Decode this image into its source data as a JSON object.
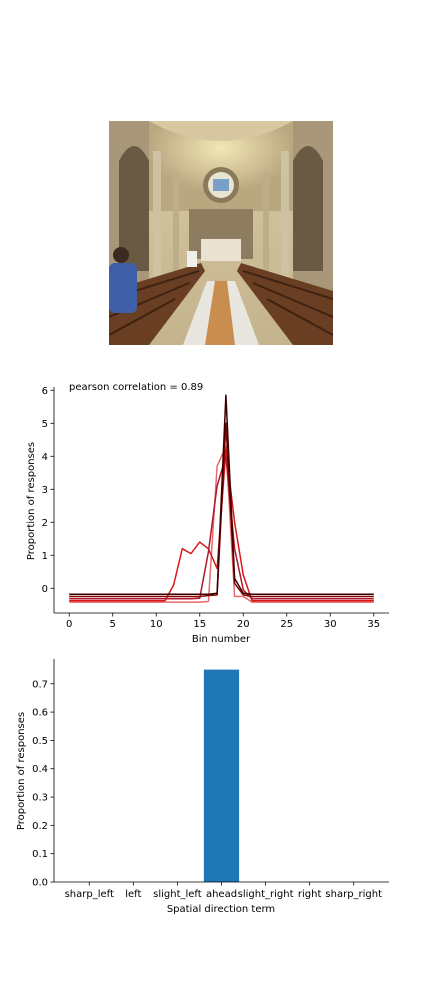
{
  "chart_data": [
    {
      "type": "line",
      "annotation": "pearson correlation = 0.89",
      "xlabel": "Bin number",
      "ylabel": "Proportion of responses",
      "xlim": [
        -1.75,
        36.75
      ],
      "ylim": [
        -0.75,
        6.1
      ],
      "xticks": [
        0,
        5,
        10,
        15,
        20,
        25,
        30,
        35
      ],
      "yticks": [
        0,
        1,
        2,
        3,
        4,
        5,
        6
      ],
      "grid": false,
      "x": [
        0,
        1,
        2,
        3,
        4,
        5,
        6,
        7,
        8,
        9,
        10,
        11,
        12,
        13,
        14,
        15,
        16,
        17,
        18,
        19,
        20,
        21,
        22,
        23,
        24,
        25,
        26,
        27,
        28,
        29,
        30,
        35
      ],
      "series": [
        {
          "color": "#e96a6a",
          "values": [
            -0.42,
            -0.42,
            -0.42,
            -0.42,
            -0.42,
            -0.42,
            -0.42,
            -0.42,
            -0.42,
            -0.42,
            -0.42,
            -0.42,
            -0.42,
            -0.42,
            -0.42,
            -0.42,
            -0.4,
            3.7,
            4.3,
            -0.25,
            -0.25,
            -0.42,
            -0.42,
            -0.42,
            -0.42,
            -0.42,
            -0.42,
            -0.42,
            -0.42,
            -0.42,
            -0.42,
            -0.42
          ]
        },
        {
          "color": "#d7191c",
          "values": [
            -0.38,
            -0.38,
            -0.38,
            -0.38,
            -0.38,
            -0.38,
            -0.38,
            -0.38,
            -0.38,
            -0.38,
            -0.38,
            -0.38,
            0.1,
            1.2,
            1.05,
            1.4,
            1.2,
            0.6,
            4.2,
            2.0,
            0.4,
            -0.38,
            -0.38,
            -0.38,
            -0.38,
            -0.38,
            -0.38,
            -0.38,
            -0.38,
            -0.38,
            -0.38,
            -0.38
          ]
        },
        {
          "color": "#b2182b",
          "values": [
            -0.32,
            -0.32,
            -0.32,
            -0.32,
            -0.32,
            -0.32,
            -0.32,
            -0.32,
            -0.32,
            -0.32,
            -0.32,
            -0.32,
            -0.32,
            -0.32,
            -0.32,
            -0.3,
            1.1,
            3.1,
            4.0,
            1.2,
            -0.05,
            -0.32,
            -0.32,
            -0.32,
            -0.32,
            -0.32,
            -0.32,
            -0.32,
            -0.32,
            -0.32,
            -0.32,
            -0.32
          ]
        },
        {
          "color": "#7f0000",
          "values": [
            -0.25,
            -0.25,
            -0.25,
            -0.25,
            -0.25,
            -0.25,
            -0.25,
            -0.25,
            -0.25,
            -0.25,
            -0.25,
            -0.25,
            -0.25,
            -0.25,
            -0.25,
            -0.25,
            -0.22,
            -0.2,
            5.0,
            0.15,
            -0.2,
            -0.25,
            -0.25,
            -0.25,
            -0.25,
            -0.25,
            -0.25,
            -0.25,
            -0.25,
            -0.25,
            -0.25,
            -0.25
          ]
        },
        {
          "color": "#3a0000",
          "values": [
            -0.18,
            -0.18,
            -0.18,
            -0.18,
            -0.18,
            -0.18,
            -0.18,
            -0.18,
            -0.18,
            -0.18,
            -0.18,
            -0.18,
            -0.18,
            -0.18,
            -0.18,
            -0.18,
            -0.18,
            -0.15,
            5.85,
            0.3,
            -0.15,
            -0.18,
            -0.18,
            -0.18,
            -0.18,
            -0.18,
            -0.18,
            -0.18,
            -0.18,
            -0.18,
            -0.18,
            -0.18
          ]
        }
      ]
    },
    {
      "type": "bar",
      "xlabel": "Spatial direction term",
      "ylabel": "Proportion of responses",
      "categories": [
        "sharp_left",
        "left",
        "slight_left",
        "ahead",
        "slight_right",
        "right",
        "sharp_right"
      ],
      "values": [
        0,
        0,
        0,
        0.75,
        0,
        0,
        0
      ],
      "ylim": [
        0,
        0.7875
      ],
      "yticks": [
        0.0,
        0.1,
        0.2,
        0.3,
        0.4,
        0.5,
        0.6,
        0.7
      ],
      "bar_color": "#1f77b4",
      "grid": false
    }
  ]
}
